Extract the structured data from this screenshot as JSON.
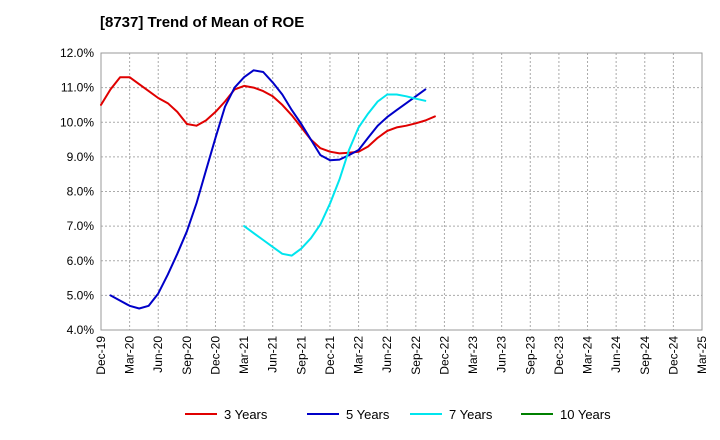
{
  "chart_data": {
    "type": "line",
    "title": "[8737]  Trend of Mean of ROE",
    "xlabel": "",
    "ylabel": "",
    "y_tick_labels": [
      "4.0%",
      "5.0%",
      "6.0%",
      "7.0%",
      "8.0%",
      "9.0%",
      "10.0%",
      "11.0%",
      "12.0%"
    ],
    "ylim": [
      4.0,
      12.0
    ],
    "y_unit": "%",
    "x_tick_labels": [
      "Dec-19",
      "Mar-20",
      "Jun-20",
      "Sep-20",
      "Dec-20",
      "Mar-21",
      "Jun-21",
      "Sep-21",
      "Dec-21",
      "Mar-22",
      "Jun-22",
      "Sep-22",
      "Dec-22",
      "Mar-23",
      "Jun-23",
      "Sep-23",
      "Dec-23",
      "Mar-24",
      "Jun-24",
      "Sep-24",
      "Dec-24",
      "Mar-25"
    ],
    "grid": true,
    "legend_position": "bottom",
    "series": [
      {
        "name": "3 Years",
        "color": "#e00000",
        "start_index": 0,
        "values": [
          10.5,
          10.95,
          11.3,
          11.3,
          11.1,
          10.9,
          10.7,
          10.55,
          10.3,
          9.95,
          9.9,
          10.05,
          10.3,
          10.6,
          10.95,
          11.05,
          11.0,
          10.9,
          10.75,
          10.5,
          10.2,
          9.85,
          9.5,
          9.25,
          9.15,
          9.1,
          9.12,
          9.15,
          9.3,
          9.55,
          9.75,
          9.85,
          9.9,
          9.97,
          10.05,
          10.17
        ]
      },
      {
        "name": "5 Years",
        "color": "#0000c8",
        "start_index": 1,
        "values": [
          5.0,
          4.85,
          4.7,
          4.62,
          4.7,
          5.05,
          5.6,
          6.2,
          6.85,
          7.65,
          8.6,
          9.55,
          10.45,
          11.0,
          11.3,
          11.5,
          11.45,
          11.15,
          10.8,
          10.35,
          9.95,
          9.5,
          9.05,
          8.9,
          8.92,
          9.05,
          9.2,
          9.55,
          9.9,
          10.15,
          10.35,
          10.55,
          10.75,
          10.95
        ]
      },
      {
        "name": "7 Years",
        "color": "#00e5ee",
        "start_index": 15,
        "values": [
          7.0,
          6.8,
          6.6,
          6.4,
          6.2,
          6.15,
          6.35,
          6.65,
          7.05,
          7.65,
          8.35,
          9.2,
          9.85,
          10.25,
          10.6,
          10.8,
          10.8,
          10.75,
          10.68,
          10.62
        ]
      },
      {
        "name": "10 Years",
        "color": "#008000",
        "start_index": 0,
        "values": []
      }
    ]
  }
}
